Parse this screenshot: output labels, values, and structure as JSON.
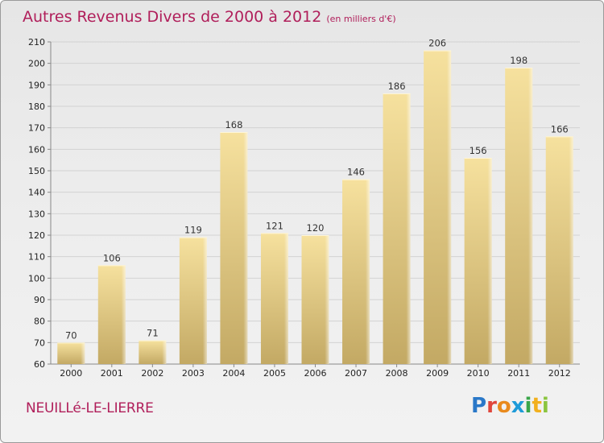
{
  "header": {
    "title": "Autres Revenus Divers de 2000 à 2012",
    "unit_note": "(en milliers d'€)"
  },
  "location": {
    "name": "NEUILLé-LE-LIERRE"
  },
  "branding": {
    "logo_text": "Proxiti",
    "logo_colors": [
      "#2a78c8",
      "#e0463c",
      "#e98a1d",
      "#1e9bd8",
      "#3aa64a",
      "#f2b01e",
      "#8bc53f"
    ]
  },
  "colors": {
    "title": "#b01e5a",
    "bar_light": "#f5df9a",
    "bar_dark": "#c3a964"
  },
  "chart_data": {
    "type": "bar",
    "title": "Autres Revenus Divers de 2000 à 2012",
    "subtitle": "(en milliers d'€)",
    "xlabel": "",
    "ylabel": "",
    "categories": [
      "2000",
      "2001",
      "2002",
      "2003",
      "2004",
      "2005",
      "2006",
      "2007",
      "2008",
      "2009",
      "2010",
      "2011",
      "2012"
    ],
    "values": [
      70,
      106,
      71,
      119,
      168,
      121,
      120,
      146,
      186,
      206,
      156,
      198,
      166
    ],
    "ylim": [
      60,
      210
    ],
    "yticks": [
      60,
      70,
      80,
      90,
      100,
      110,
      120,
      130,
      140,
      150,
      160,
      170,
      180,
      190,
      200,
      210
    ],
    "grid": true,
    "legend": "none"
  }
}
